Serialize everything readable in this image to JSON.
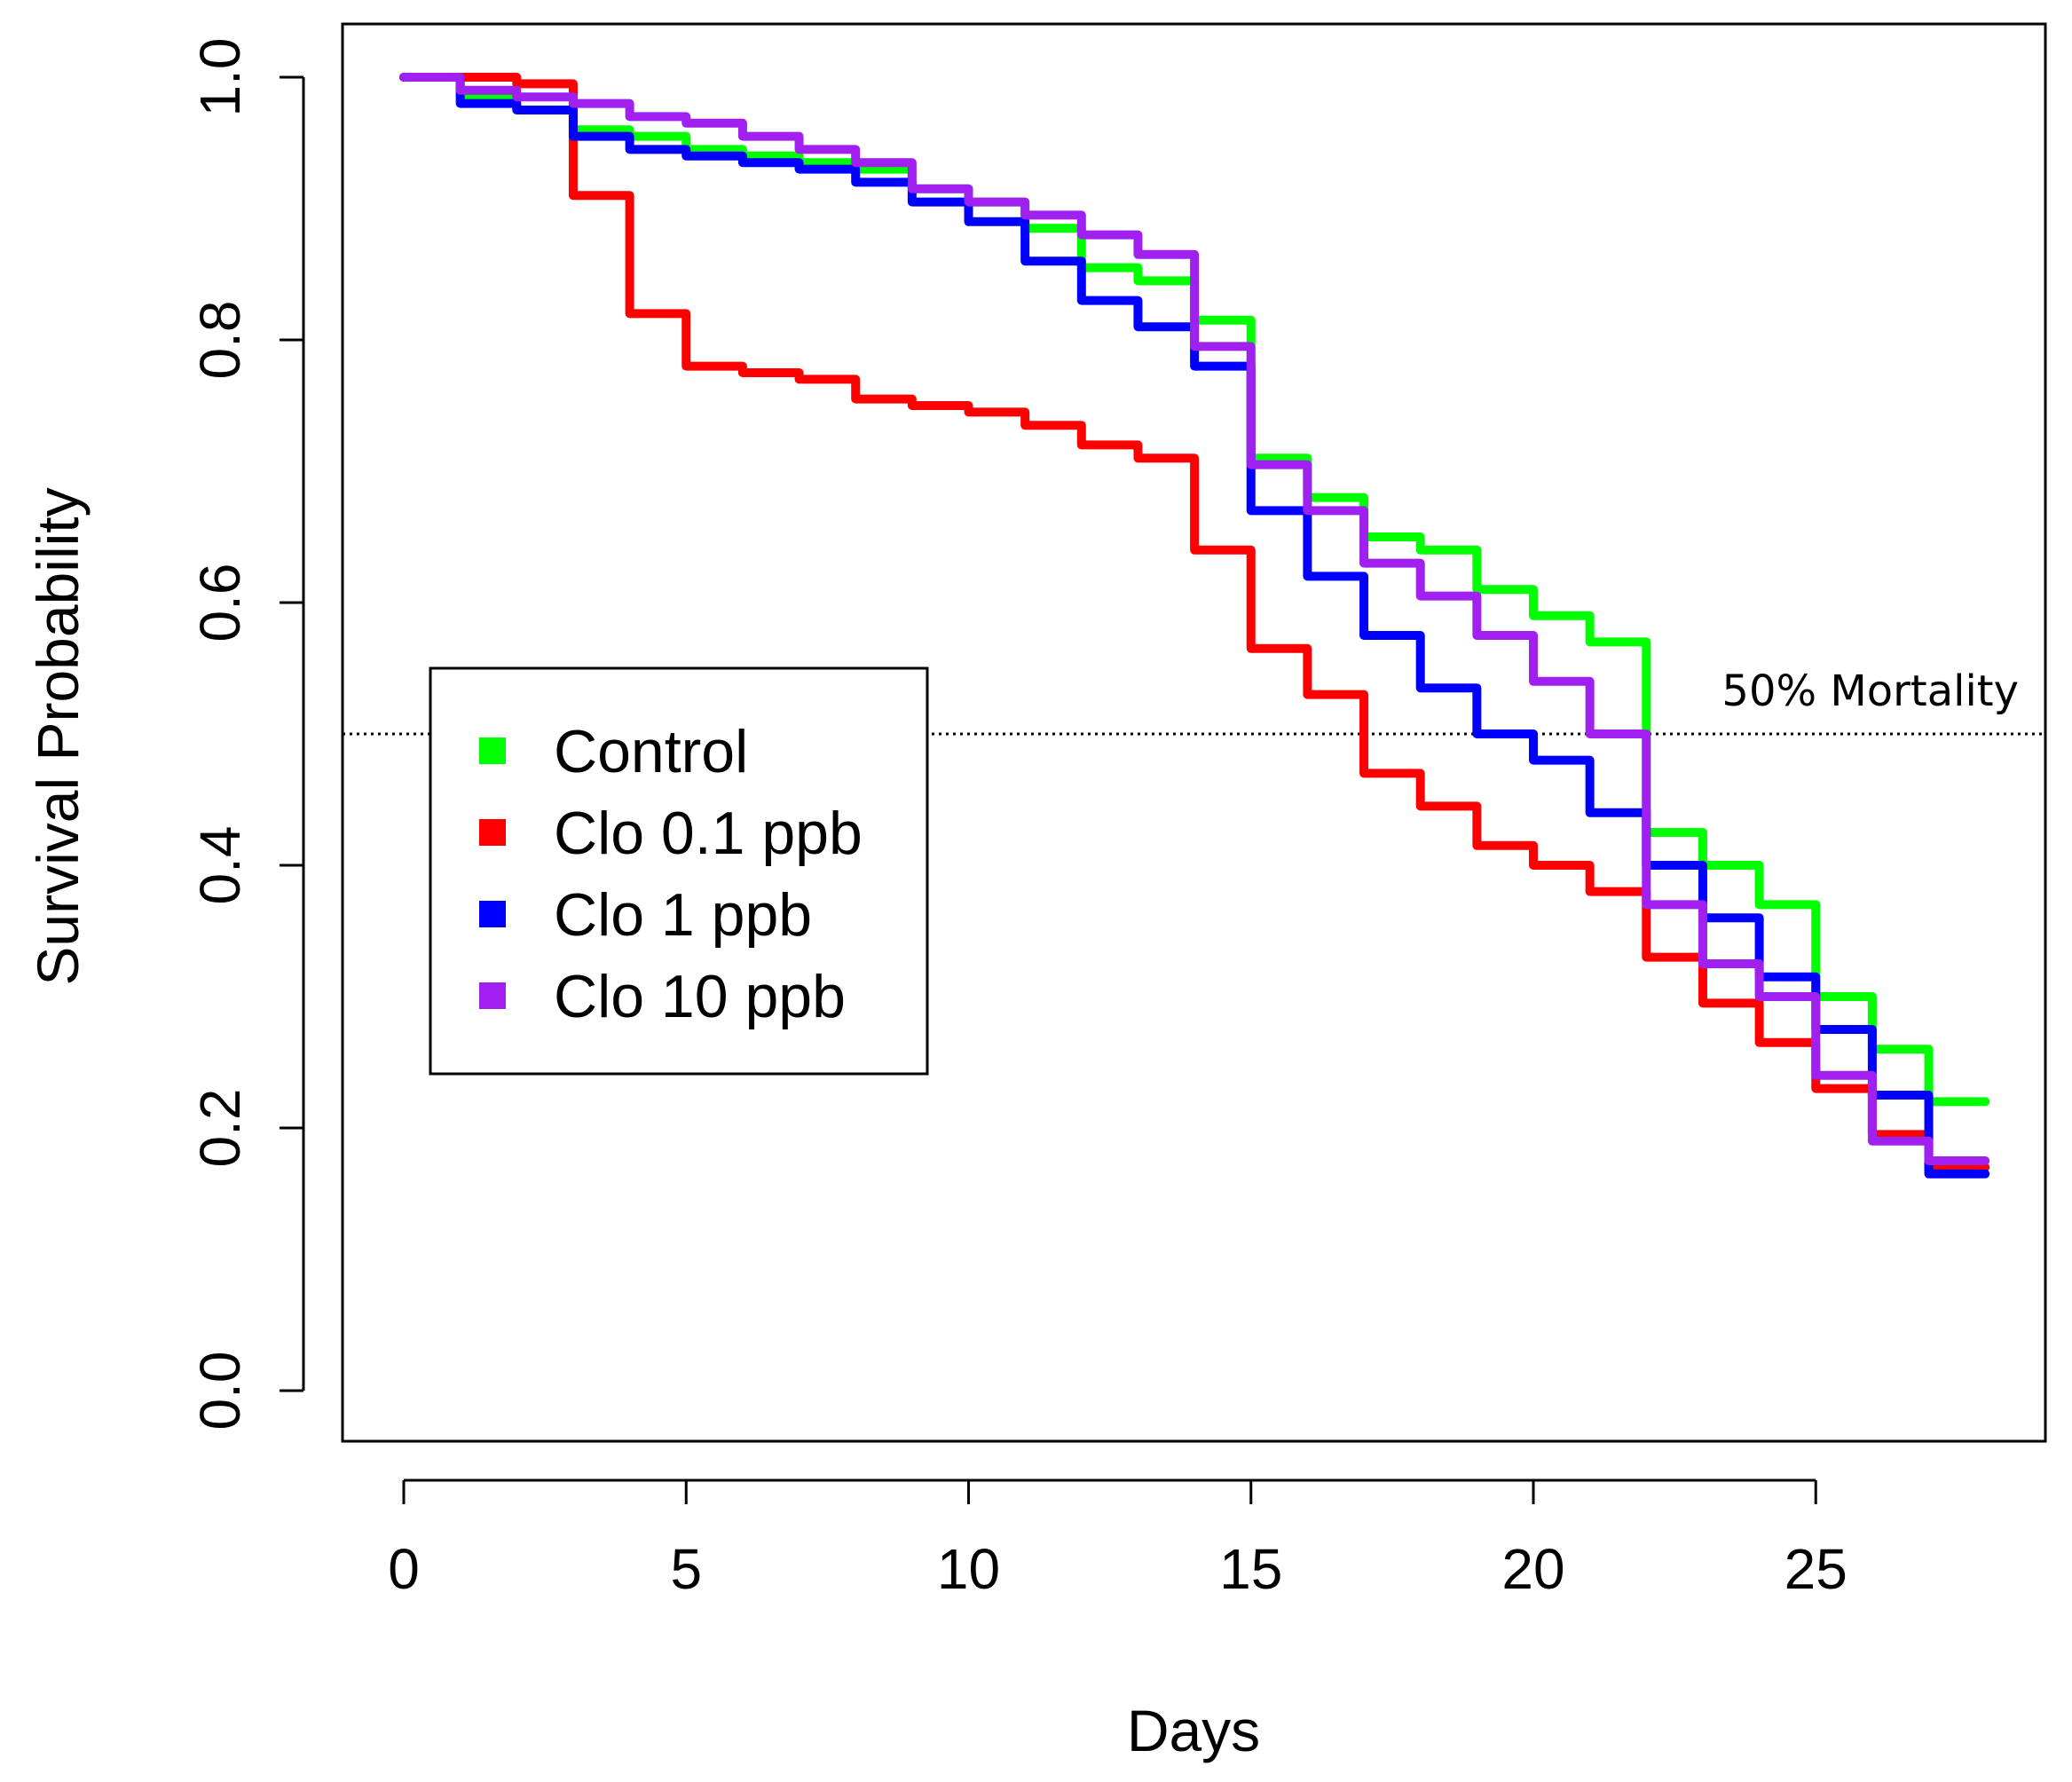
{
  "chart_data": {
    "type": "line",
    "subtype": "step (Kaplan-Meier survival curves)",
    "title": "",
    "xlabel": "Days",
    "ylabel": "Survival Probability",
    "xlim": [
      0,
      28
    ],
    "ylim": [
      0,
      1
    ],
    "xticks": [
      "0",
      "5",
      "10",
      "15",
      "20",
      "25"
    ],
    "xtick_values": [
      0,
      5,
      10,
      15,
      20,
      25
    ],
    "yticks": [
      "0.0",
      "0.2",
      "0.4",
      "0.6",
      "0.8",
      "1.0"
    ],
    "ytick_values": [
      0,
      0.2,
      0.4,
      0.6,
      0.8,
      1.0
    ],
    "grid": false,
    "legend_position": "center-left",
    "reference_line": {
      "y": 0.5,
      "style": "dotted",
      "label": "50% Mortality"
    },
    "x": [
      0,
      1,
      2,
      3,
      4,
      5,
      6,
      7,
      8,
      9,
      10,
      11,
      12,
      13,
      14,
      15,
      16,
      17,
      18,
      19,
      20,
      21,
      22,
      23,
      24,
      25,
      26,
      27,
      28
    ],
    "series": [
      {
        "name": "Control",
        "color": "#00ff00",
        "values": [
          1.0,
          0.985,
          0.975,
          0.96,
          0.955,
          0.945,
          0.94,
          0.935,
          0.93,
          0.915,
          0.905,
          0.885,
          0.855,
          0.845,
          0.815,
          0.71,
          0.68,
          0.65,
          0.64,
          0.61,
          0.59,
          0.57,
          0.425,
          0.4,
          0.37,
          0.3,
          0.26,
          0.22,
          0.22
        ]
      },
      {
        "name": "Clo 0.1 ppb",
        "color": "#ff0000",
        "values": [
          1.0,
          1.0,
          0.995,
          0.91,
          0.82,
          0.78,
          0.775,
          0.77,
          0.755,
          0.75,
          0.745,
          0.735,
          0.72,
          0.71,
          0.64,
          0.565,
          0.53,
          0.47,
          0.445,
          0.415,
          0.4,
          0.38,
          0.33,
          0.295,
          0.265,
          0.23,
          0.195,
          0.17,
          0.17
        ]
      },
      {
        "name": "Clo 1 ppb",
        "color": "#0000ff",
        "values": [
          1.0,
          0.98,
          0.975,
          0.955,
          0.945,
          0.94,
          0.935,
          0.93,
          0.92,
          0.905,
          0.89,
          0.86,
          0.83,
          0.81,
          0.78,
          0.67,
          0.62,
          0.575,
          0.535,
          0.5,
          0.48,
          0.44,
          0.4,
          0.36,
          0.315,
          0.275,
          0.225,
          0.165,
          0.165
        ]
      },
      {
        "name": "Clo 10 ppb",
        "color": "#a020f0",
        "values": [
          1.0,
          0.99,
          0.985,
          0.98,
          0.97,
          0.965,
          0.955,
          0.945,
          0.935,
          0.915,
          0.905,
          0.895,
          0.88,
          0.865,
          0.795,
          0.705,
          0.67,
          0.63,
          0.605,
          0.575,
          0.54,
          0.5,
          0.37,
          0.325,
          0.3,
          0.24,
          0.19,
          0.175,
          0.175
        ]
      }
    ]
  }
}
